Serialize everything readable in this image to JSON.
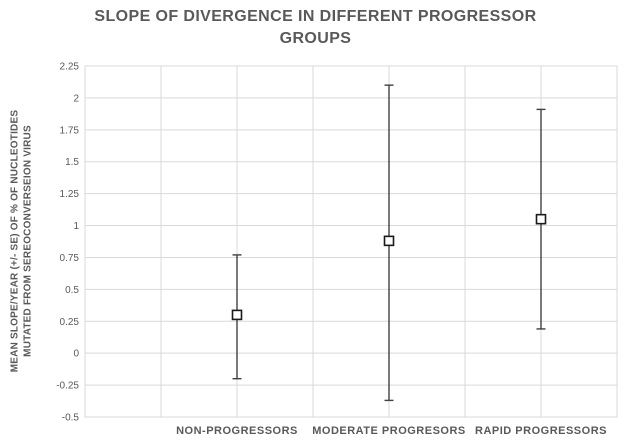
{
  "title": "SLOPE OF DIVERGENCE IN DIFFERENT PROGRESSOR GROUPS",
  "title_lines": [
    "SLOPE OF DIVERGENCE IN DIFFERENT PROGRESSOR",
    "GROUPS"
  ],
  "colors": {
    "text": "#595959",
    "grid": "#d9d9d9",
    "plot_border": "#d9d9d9",
    "error_bar": "#404040",
    "marker_border": "#1a1a1a",
    "marker_fill": "#ffffff",
    "background": "#ffffff"
  },
  "chart_data": {
    "type": "scatter",
    "subtype": "mean-with-error-bars",
    "title": "SLOPE OF DIVERGENCE IN DIFFERENT PROGRESSOR GROUPS",
    "ylabel": "MEAN SLOPE/YEAR (+/- SE) OF % OF NUCLEOTIDES MUTATED FROM SEREOCONVERSEION VIRUS",
    "ylabel_lines": [
      "MEAN SLOPE/YEAR (+/- SE) OF % OF NUCLEOTIDES",
      "MUTATED FROM SEREOCONVERSEION VIRUS"
    ],
    "xlabel": "",
    "grid": true,
    "legend": "none",
    "marker": "open-square",
    "categories": [
      "NON-PROGRESSORS",
      "MODERATE PROGRESORS",
      "RAPID PROGRESSORS"
    ],
    "series": [
      {
        "name": "Mean slope/year (+/- SE)",
        "points": [
          {
            "category": "NON-PROGRESSORS",
            "mean": 0.3,
            "upper": 0.77,
            "lower": -0.2
          },
          {
            "category": "MODERATE PROGRESORS",
            "mean": 0.88,
            "upper": 2.1,
            "lower": -0.37
          },
          {
            "category": "RAPID PROGRESSORS",
            "mean": 1.05,
            "upper": 1.91,
            "lower": 0.19
          }
        ]
      }
    ],
    "y_axis": {
      "min": -0.5,
      "max": 2.25,
      "step": 0.25,
      "ticks": [
        {
          "label": "2.25",
          "value": 2.25
        },
        {
          "label": "2",
          "value": 2.0
        },
        {
          "label": "1.75",
          "value": 1.75
        },
        {
          "label": "1.5",
          "value": 1.5
        },
        {
          "label": "1.25",
          "value": 1.25
        },
        {
          "label": "1",
          "value": 1.0
        },
        {
          "label": "0.75",
          "value": 0.75
        },
        {
          "label": "0.5",
          "value": 0.5
        },
        {
          "label": "0.25",
          "value": 0.25
        },
        {
          "label": "0",
          "value": 0.0
        },
        {
          "label": "-0.25",
          "value": -0.25
        },
        {
          "label": "-0.5",
          "value": -0.5
        }
      ]
    },
    "x_axis": {
      "min": 0,
      "max": 3.5,
      "gridline_step": 0.5,
      "category_positions": [
        1,
        2,
        3
      ]
    }
  }
}
